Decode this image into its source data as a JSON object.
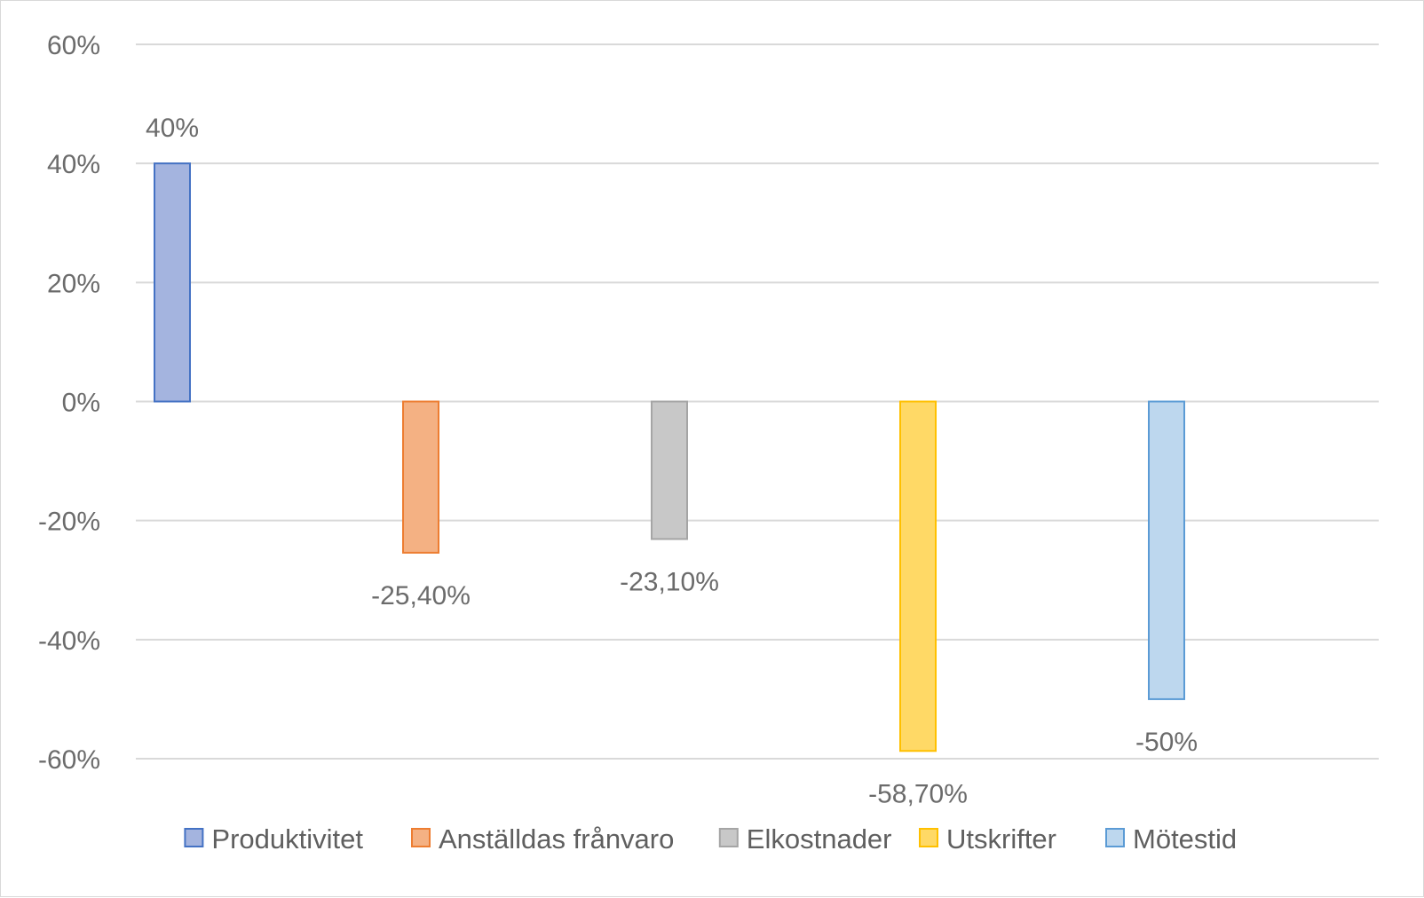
{
  "chart_data": {
    "type": "bar",
    "categories": [
      "Produktivitet",
      "Anställdas frånvaro",
      "Elkostnader",
      "Utskrifter",
      "Mötestid"
    ],
    "values": [
      40,
      -25.4,
      -23.1,
      -58.7,
      -50
    ],
    "data_labels": [
      "40%",
      "-25,40%",
      "-23,10%",
      "-58,70%",
      "-50%"
    ],
    "ylim": [
      -60,
      60
    ],
    "y_ticks": [
      60,
      40,
      20,
      0,
      -20,
      -40,
      -60
    ],
    "y_tick_labels": [
      "60%",
      "40%",
      "20%",
      "0%",
      "-20%",
      "-40%",
      "-60%"
    ],
    "grid": true,
    "legend_position": "bottom",
    "title": "",
    "xlabel": "",
    "ylabel": "",
    "colors": {
      "fills": [
        "#a4b4df",
        "#f4b183",
        "#c8c8c8",
        "#ffd966",
        "#bdd7ee"
      ],
      "strokes": [
        "#4472c4",
        "#ed7d31",
        "#a5a5a5",
        "#ffc000",
        "#5b9bd5"
      ],
      "grid": "#d9d9d9",
      "axis_text": "#6b6b6b"
    }
  }
}
